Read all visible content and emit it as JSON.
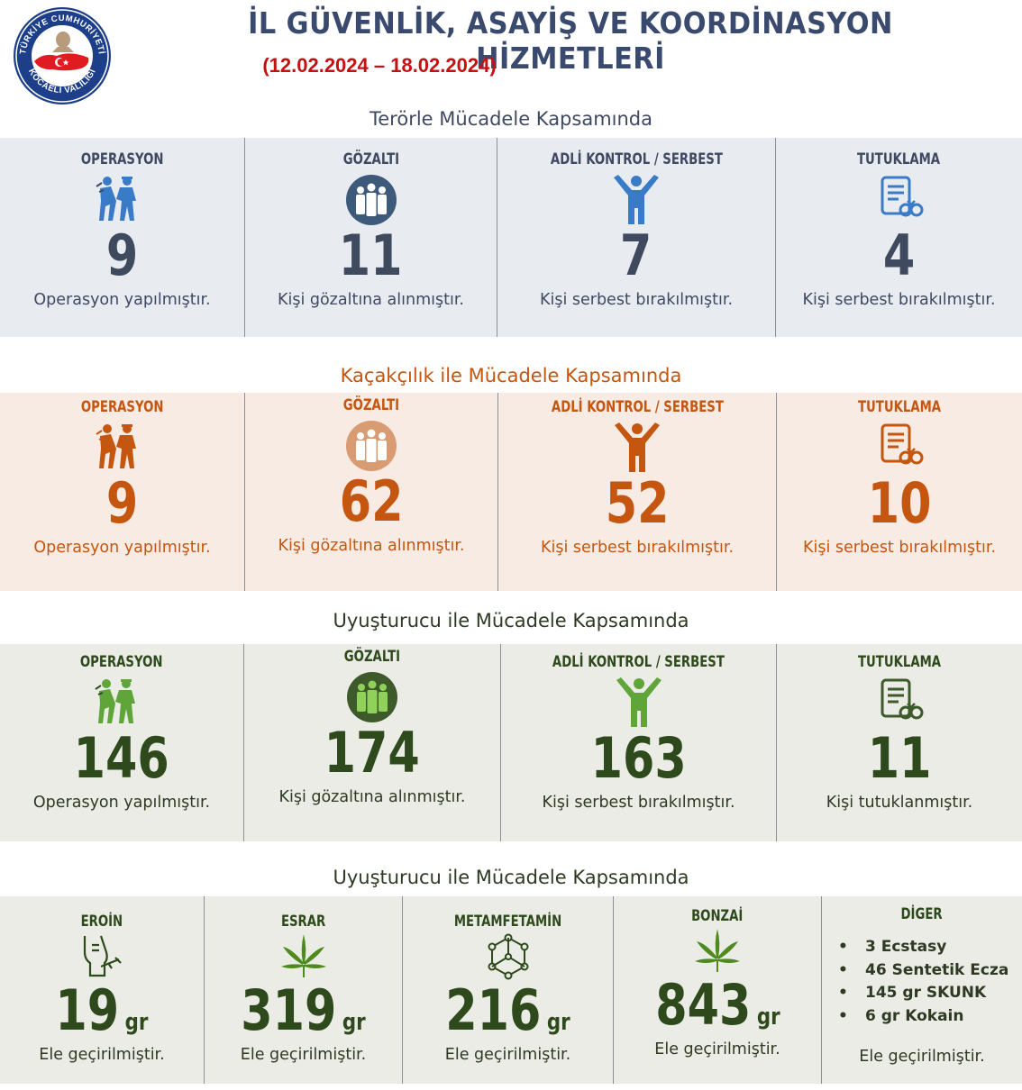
{
  "header": {
    "logo_top_text": "TÜRKİYE CUMHURİYETİ",
    "logo_bottom_text": "KOCAELİ VALİLİĞİ",
    "title": "İL GÜVENLİK, ASAYİŞ VE KOORDİNASYON HİZMETLERİ",
    "date_range": "(12.02.2024 – 18.02.2024)"
  },
  "colors": {
    "blue": "#3f4a62",
    "orange": "#c5560f",
    "green": "#2e4a1c",
    "red": "#c41212"
  },
  "sections": [
    {
      "title": "Terörle Mücadele Kapsamında",
      "cells": [
        {
          "label": "OPERASYON",
          "icon": "police-arrest-icon",
          "value": "9",
          "desc": "Operasyon yapılmıştır."
        },
        {
          "label": "GÖZALTI",
          "icon": "group-people-icon",
          "value": "11",
          "desc": "Kişi gözaltına alınmıştır."
        },
        {
          "label": "ADLİ KONTROL / SERBEST",
          "icon": "free-person-icon",
          "value": "7",
          "desc": "Kişi serbest bırakılmıştır."
        },
        {
          "label": "TUTUKLAMA",
          "icon": "document-handcuffs-icon",
          "value": "4",
          "desc": "Kişi serbest bırakılmıştır."
        }
      ]
    },
    {
      "title": "Kaçakçılık ile Mücadele Kapsamında",
      "cells": [
        {
          "label": "OPERASYON",
          "icon": "police-arrest-icon",
          "value": "9",
          "desc": "Operasyon yapılmıştır."
        },
        {
          "label": "GÖZALTI",
          "icon": "group-people-icon",
          "value": "62",
          "desc": "Kişi gözaltına alınmıştır."
        },
        {
          "label": "ADLİ KONTROL / SERBEST",
          "icon": "free-person-icon",
          "value": "52",
          "desc": "Kişi serbest bırakılmıştır."
        },
        {
          "label": "TUTUKLAMA",
          "icon": "document-handcuffs-icon",
          "value": "10",
          "desc": "Kişi serbest bırakılmıştır."
        }
      ]
    },
    {
      "title": "Uyuşturucu ile Mücadele Kapsamında",
      "cells": [
        {
          "label": "OPERASYON",
          "icon": "police-arrest-icon",
          "value": "146",
          "desc": "Operasyon yapılmıştır."
        },
        {
          "label": "GÖZALTI",
          "icon": "group-people-icon",
          "value": "174",
          "desc": "Kişi gözaltına alınmıştır."
        },
        {
          "label": "ADLİ KONTROL / SERBEST",
          "icon": "free-person-icon",
          "value": "163",
          "desc": "Kişi serbest bırakılmıştır."
        },
        {
          "label": "TUTUKLAMA",
          "icon": "document-handcuffs-icon",
          "value": "11",
          "desc": "Kişi tutuklanmıştır."
        }
      ]
    }
  ],
  "drugs": {
    "title": "Uyuşturucu ile  Mücadele Kapsamında",
    "cells": [
      {
        "label": "EROİN",
        "icon": "syringe-arm-icon",
        "value": "19",
        "unit": "gr",
        "desc": "Ele geçirilmiştir."
      },
      {
        "label": "ESRAR",
        "icon": "cannabis-leaf-icon",
        "value": "319",
        "unit": "gr",
        "desc": "Ele geçirilmiştir."
      },
      {
        "label": "METAMFETAMİN",
        "icon": "molecule-icon",
        "value": "216",
        "unit": "gr",
        "desc": "Ele geçirilmiştir."
      },
      {
        "label": "BONZAİ",
        "icon": "cannabis-leaf-icon",
        "value": "843",
        "unit": "gr",
        "desc": "Ele geçirilmiştir."
      }
    ],
    "other": {
      "label": "DİGER",
      "items": [
        "3 Ecstasy",
        "46 Sentetik Ecza",
        "145 gr SKUNK",
        "6 gr Kokain"
      ],
      "desc": "Ele geçirilmiştir."
    }
  }
}
